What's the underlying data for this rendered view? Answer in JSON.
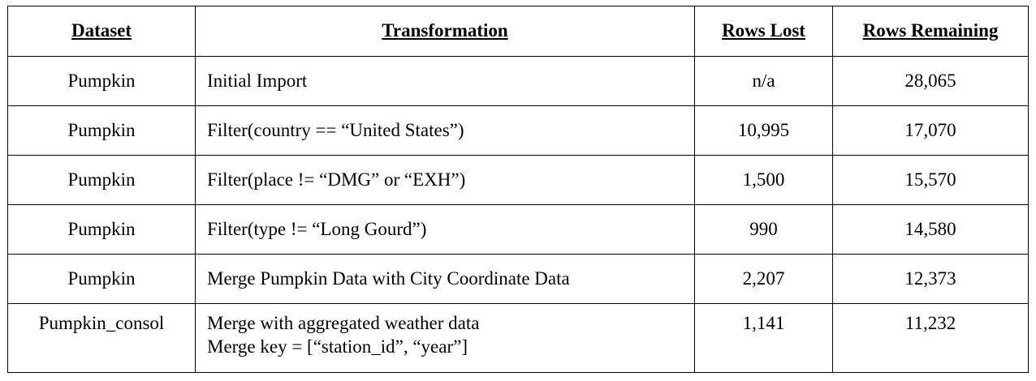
{
  "table": {
    "headers": [
      "Dataset",
      "Transformation",
      "Rows Lost",
      "Rows Remaining"
    ],
    "rows": [
      {
        "dataset": "Pumpkin",
        "transformation": [
          "Initial Import"
        ],
        "rows_lost": "n/a",
        "rows_remaining": "28,065"
      },
      {
        "dataset": "Pumpkin",
        "transformation": [
          "Filter(country == “United States”)"
        ],
        "rows_lost": "10,995",
        "rows_remaining": "17,070"
      },
      {
        "dataset": "Pumpkin",
        "transformation": [
          "Filter(place != “DMG” or “EXH”)"
        ],
        "rows_lost": "1,500",
        "rows_remaining": "15,570"
      },
      {
        "dataset": "Pumpkin",
        "transformation": [
          "Filter(type != “Long Gourd”)"
        ],
        "rows_lost": "990",
        "rows_remaining": "14,580"
      },
      {
        "dataset": "Pumpkin",
        "transformation": [
          "Merge Pumpkin Data with City Coordinate Data"
        ],
        "rows_lost": "2,207",
        "rows_remaining": "12,373"
      },
      {
        "dataset": "Pumpkin_consol",
        "transformation": [
          "Merge with aggregated weather data",
          "Merge key = [“station_id”, “year”]"
        ],
        "rows_lost": "1,141",
        "rows_remaining": "11,232"
      }
    ]
  }
}
